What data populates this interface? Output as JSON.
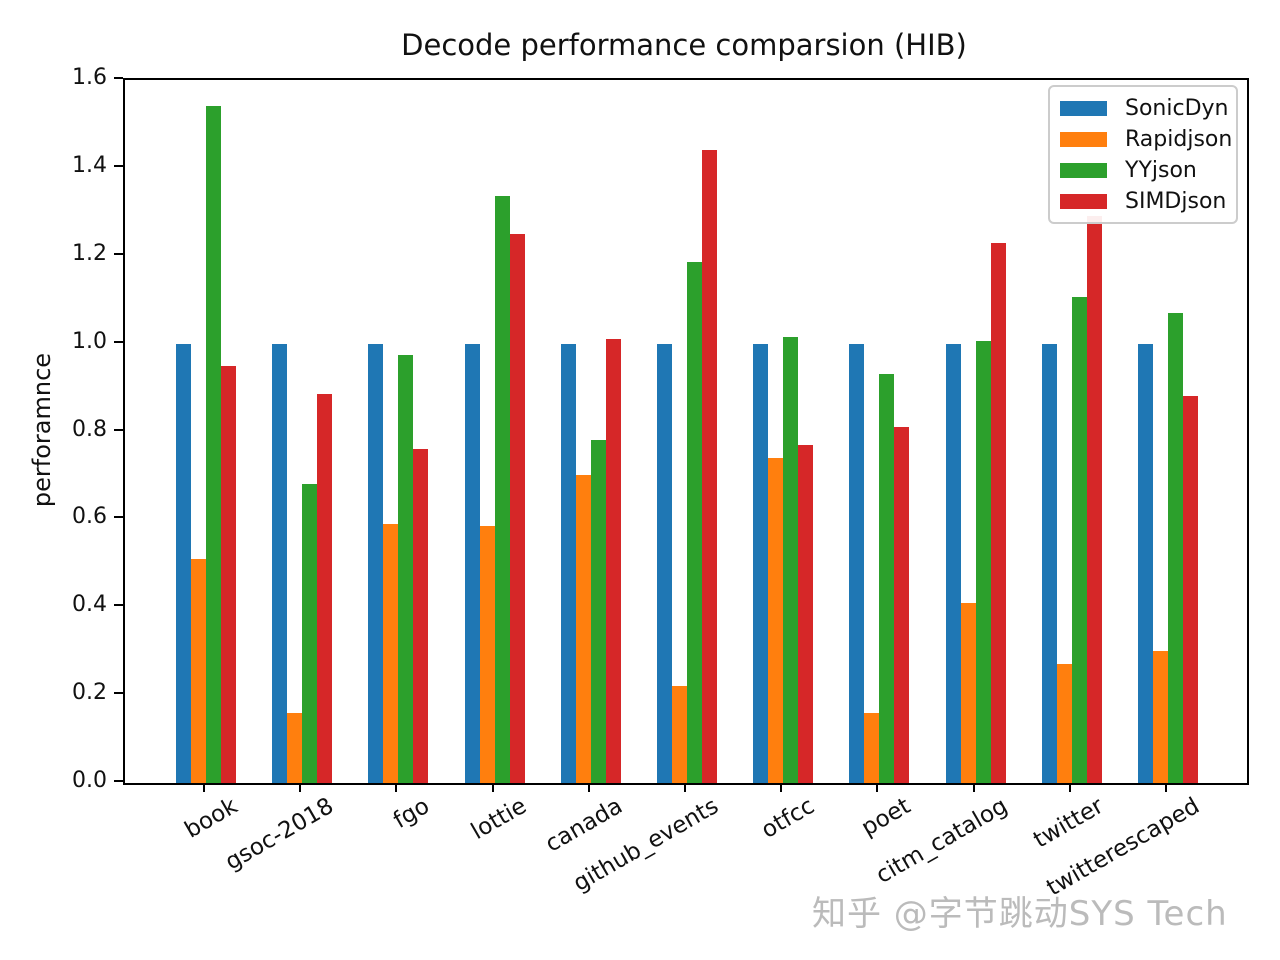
{
  "watermark": "知乎 @字节跳动SYS Tech",
  "chart_data": {
    "type": "bar",
    "title": "Decode performance comparsion (HIB)",
    "xlabel": "",
    "ylabel": "perforamnce",
    "ylim": [
      0,
      1.6
    ],
    "yticks": [
      0.0,
      0.2,
      0.4,
      0.6,
      0.8,
      1.0,
      1.2,
      1.4,
      1.6
    ],
    "grid": false,
    "legend_position": "upper right",
    "categories": [
      "book",
      "gsoc-2018",
      "fgo",
      "lottie",
      "canada",
      "github_events",
      "otfcc",
      "poet",
      "citm_catalog",
      "twitter",
      "twitterescaped"
    ],
    "series": [
      {
        "name": "SonicDyn",
        "color": "#1f77b4",
        "values": [
          1.0,
          1.0,
          1.0,
          1.0,
          1.0,
          1.0,
          1.0,
          1.0,
          1.0,
          1.0,
          1.0
        ]
      },
      {
        "name": "Rapidjson",
        "color": "#ff7f0e",
        "values": [
          0.51,
          0.16,
          0.59,
          0.585,
          0.7,
          0.22,
          0.74,
          0.16,
          0.41,
          0.27,
          0.3
        ]
      },
      {
        "name": "YYjson",
        "color": "#2ca02c",
        "values": [
          1.54,
          0.68,
          0.975,
          1.335,
          0.78,
          1.185,
          1.015,
          0.93,
          1.005,
          1.105,
          1.07
        ]
      },
      {
        "name": "SIMDjson",
        "color": "#d62728",
        "values": [
          0.95,
          0.885,
          0.76,
          1.25,
          1.01,
          1.44,
          0.77,
          0.81,
          1.23,
          1.29,
          0.88
        ]
      }
    ]
  }
}
